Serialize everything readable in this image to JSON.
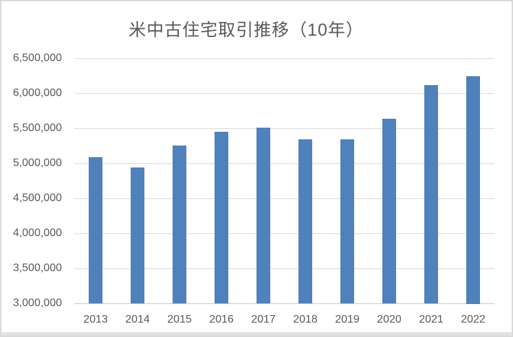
{
  "chart_data": {
    "type": "bar",
    "title": "米中古住宅取引推移（10年）",
    "categories": [
      "2013",
      "2014",
      "2015",
      "2016",
      "2017",
      "2018",
      "2019",
      "2020",
      "2021",
      "2022"
    ],
    "values": [
      5090000,
      4940000,
      5250000,
      5450000,
      5510000,
      5340000,
      5340000,
      5640000,
      6120000,
      6250000
    ],
    "xlabel": "",
    "ylabel": "",
    "ylim": [
      3000000,
      6500000
    ],
    "ytick_step": 500000,
    "ytick_labels": [
      "3,000,000",
      "3,500,000",
      "4,000,000",
      "4,500,000",
      "5,000,000",
      "5,500,000",
      "6,000,000",
      "6,500,000"
    ],
    "grid": true,
    "legend_position": "none",
    "colors": {
      "bar": "#4f81bd",
      "gridline": "#d9d9d9",
      "axis_line": "#c9c9c9",
      "label_text": "#595959",
      "frame_border": "#d9d9d9",
      "background": "#ffffff"
    }
  }
}
